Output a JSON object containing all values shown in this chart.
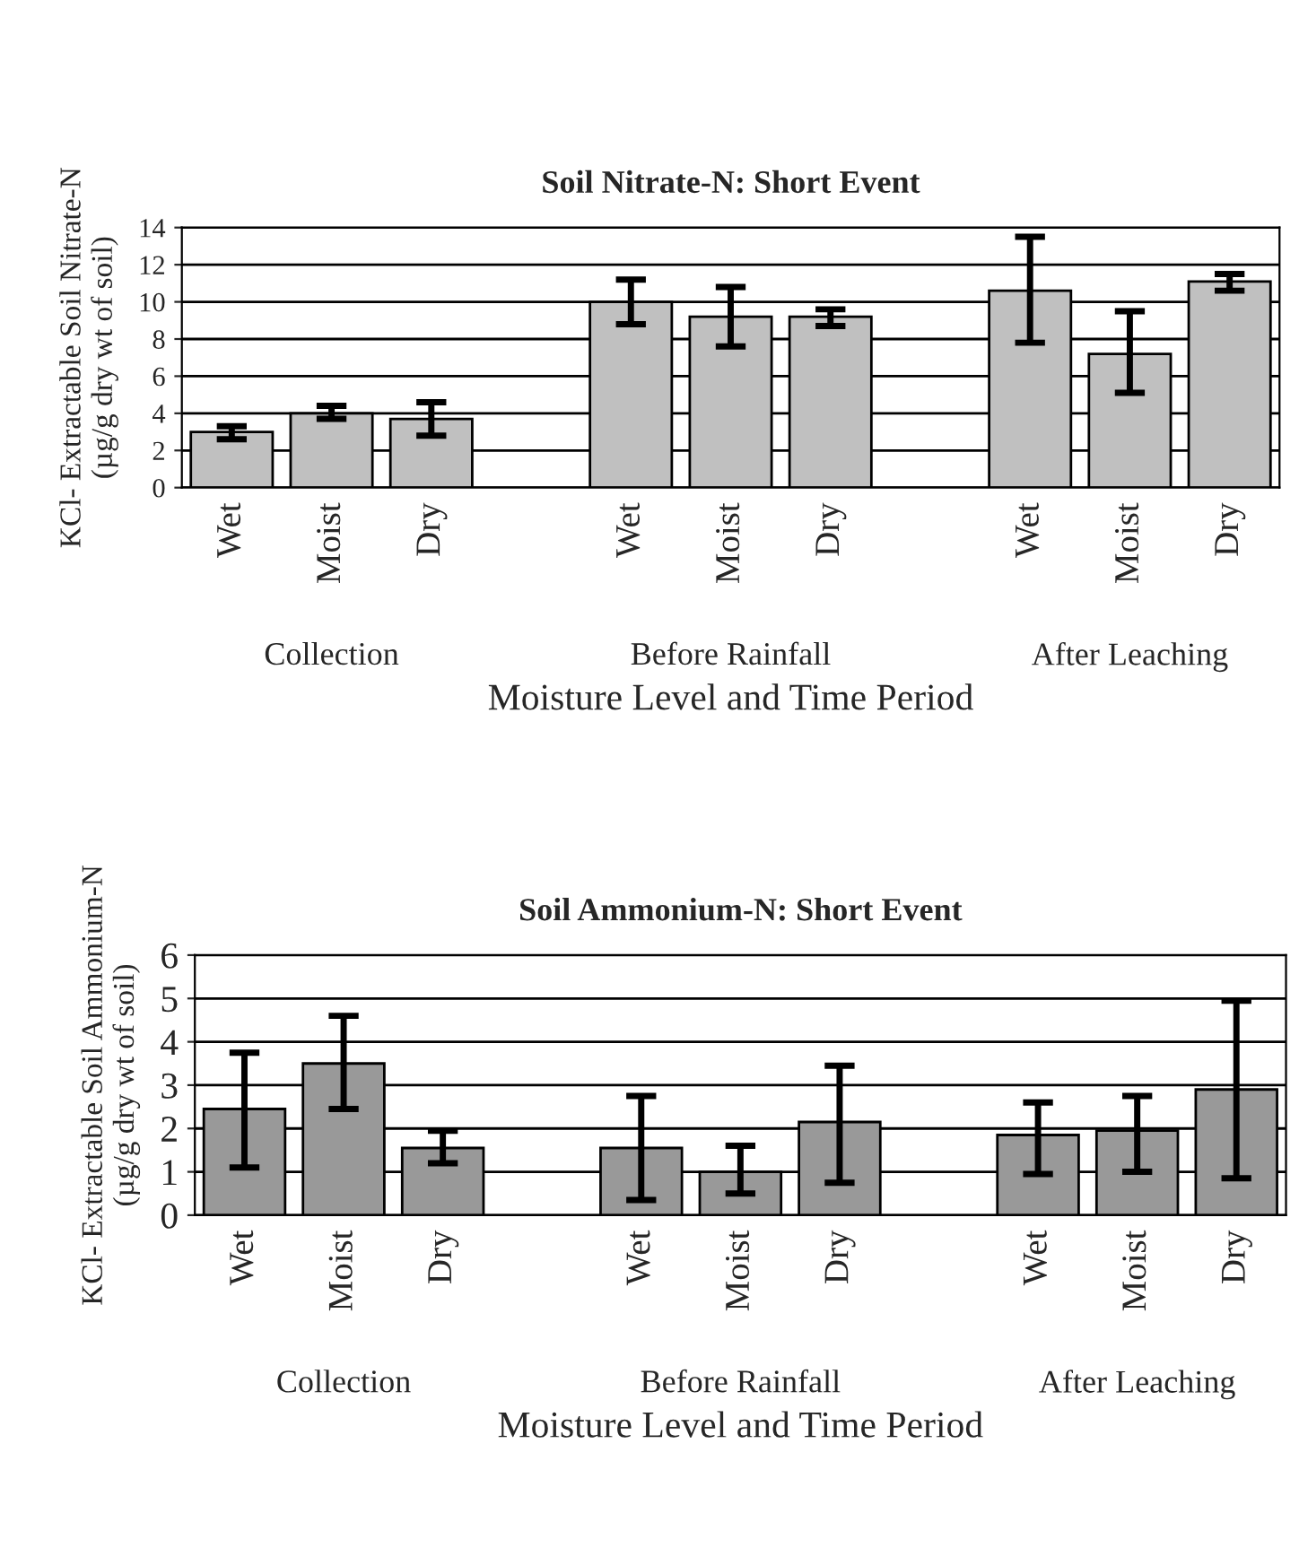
{
  "chart_data": [
    {
      "type": "bar",
      "title": "Soil Nitrate-N: Short Event",
      "xlabel": "Moisture Level and Time Period",
      "ylabel": "KCl- Extractable Soil Nitrate-N\n(µg/g dry wt of soil)",
      "categories": [
        "Wet",
        "Moist",
        "Dry",
        null,
        "Wet",
        "Moist",
        "Dry",
        null,
        "Wet",
        "Moist",
        "Dry"
      ],
      "values": [
        3.0,
        4.0,
        3.7,
        null,
        10.0,
        9.2,
        9.2,
        null,
        10.6,
        7.2,
        11.1
      ],
      "errors": [
        [
          2.6,
          3.3
        ],
        [
          3.7,
          4.4
        ],
        [
          2.8,
          4.6
        ],
        null,
        [
          8.8,
          11.2
        ],
        [
          7.6,
          10.8
        ],
        [
          8.7,
          9.6
        ],
        null,
        [
          7.8,
          13.5
        ],
        [
          5.1,
          9.5
        ],
        [
          10.6,
          11.5
        ]
      ],
      "color": "#c0c0c0",
      "ylim": [
        0,
        14
      ],
      "yticks": [
        0,
        2,
        4,
        6,
        8,
        10,
        12,
        14
      ],
      "grid": "y",
      "annotations": [
        "Collection",
        "Before Rainfall",
        "After Leaching"
      ]
    },
    {
      "type": "bar",
      "title": "Soil Ammonium-N: Short Event",
      "xlabel": "Moisture Level and Time Period",
      "ylabel": "KCl- Extractable Soil Ammonium-N\n(µg/g dry wt of soil)",
      "categories": [
        "Wet",
        "Moist",
        "Dry",
        null,
        "Wet",
        "Moist",
        "Dry",
        null,
        "Wet",
        "Moist",
        "Dry"
      ],
      "values": [
        2.45,
        3.5,
        1.55,
        null,
        1.55,
        1.0,
        2.15,
        null,
        1.85,
        1.95,
        2.9
      ],
      "errors": [
        [
          1.1,
          3.75
        ],
        [
          2.45,
          4.6
        ],
        [
          1.2,
          1.95
        ],
        null,
        [
          0.35,
          2.75
        ],
        [
          0.5,
          1.6
        ],
        [
          0.75,
          3.45
        ],
        null,
        [
          0.95,
          2.6
        ],
        [
          1.0,
          2.75
        ],
        [
          0.85,
          4.95
        ]
      ],
      "color": "#999999",
      "ylim": [
        0,
        6
      ],
      "yticks": [
        0,
        1,
        2,
        3,
        4,
        5,
        6
      ],
      "grid": "y",
      "annotations": [
        "Collection",
        "Before Rainfall",
        "After Leaching"
      ]
    }
  ]
}
